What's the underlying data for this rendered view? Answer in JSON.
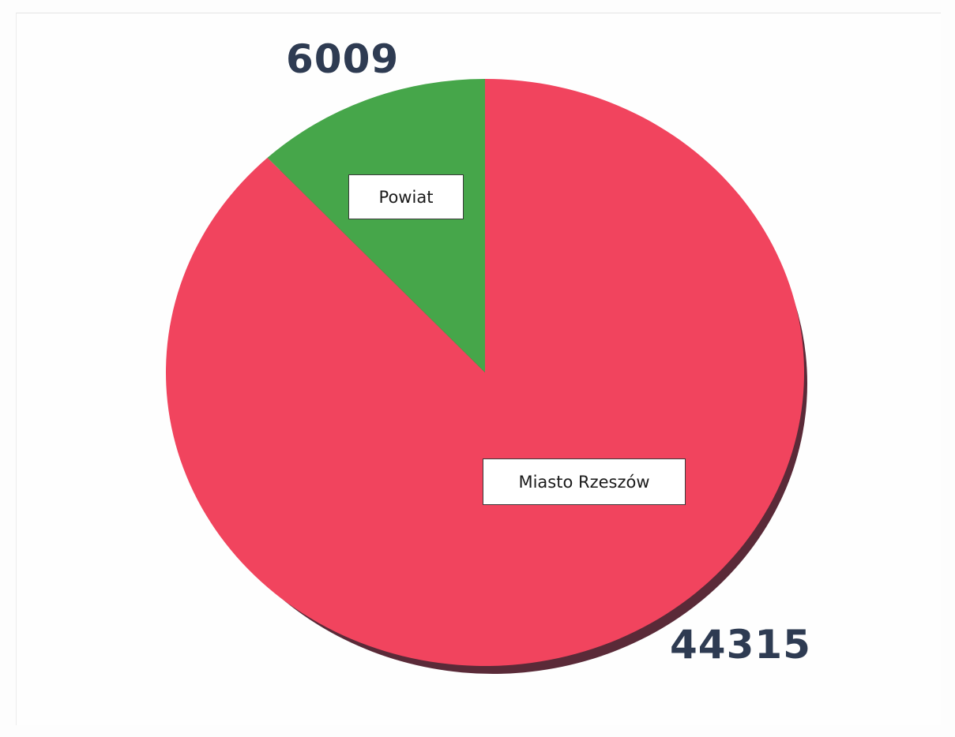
{
  "chart_data": {
    "type": "pie",
    "slices": [
      {
        "label": "Powiat",
        "value": 6009,
        "value_label": "6009",
        "color": "#46a64a"
      },
      {
        "label": "Miasto Rzeszów",
        "value": 44315,
        "value_label": "44315",
        "color": "#f1445e"
      }
    ],
    "legend": "none",
    "label_style": "boxed category labels inside slices, bold values outside"
  },
  "colors": {
    "value_text": "#2e3b52",
    "shadow": "#5a2a38"
  }
}
